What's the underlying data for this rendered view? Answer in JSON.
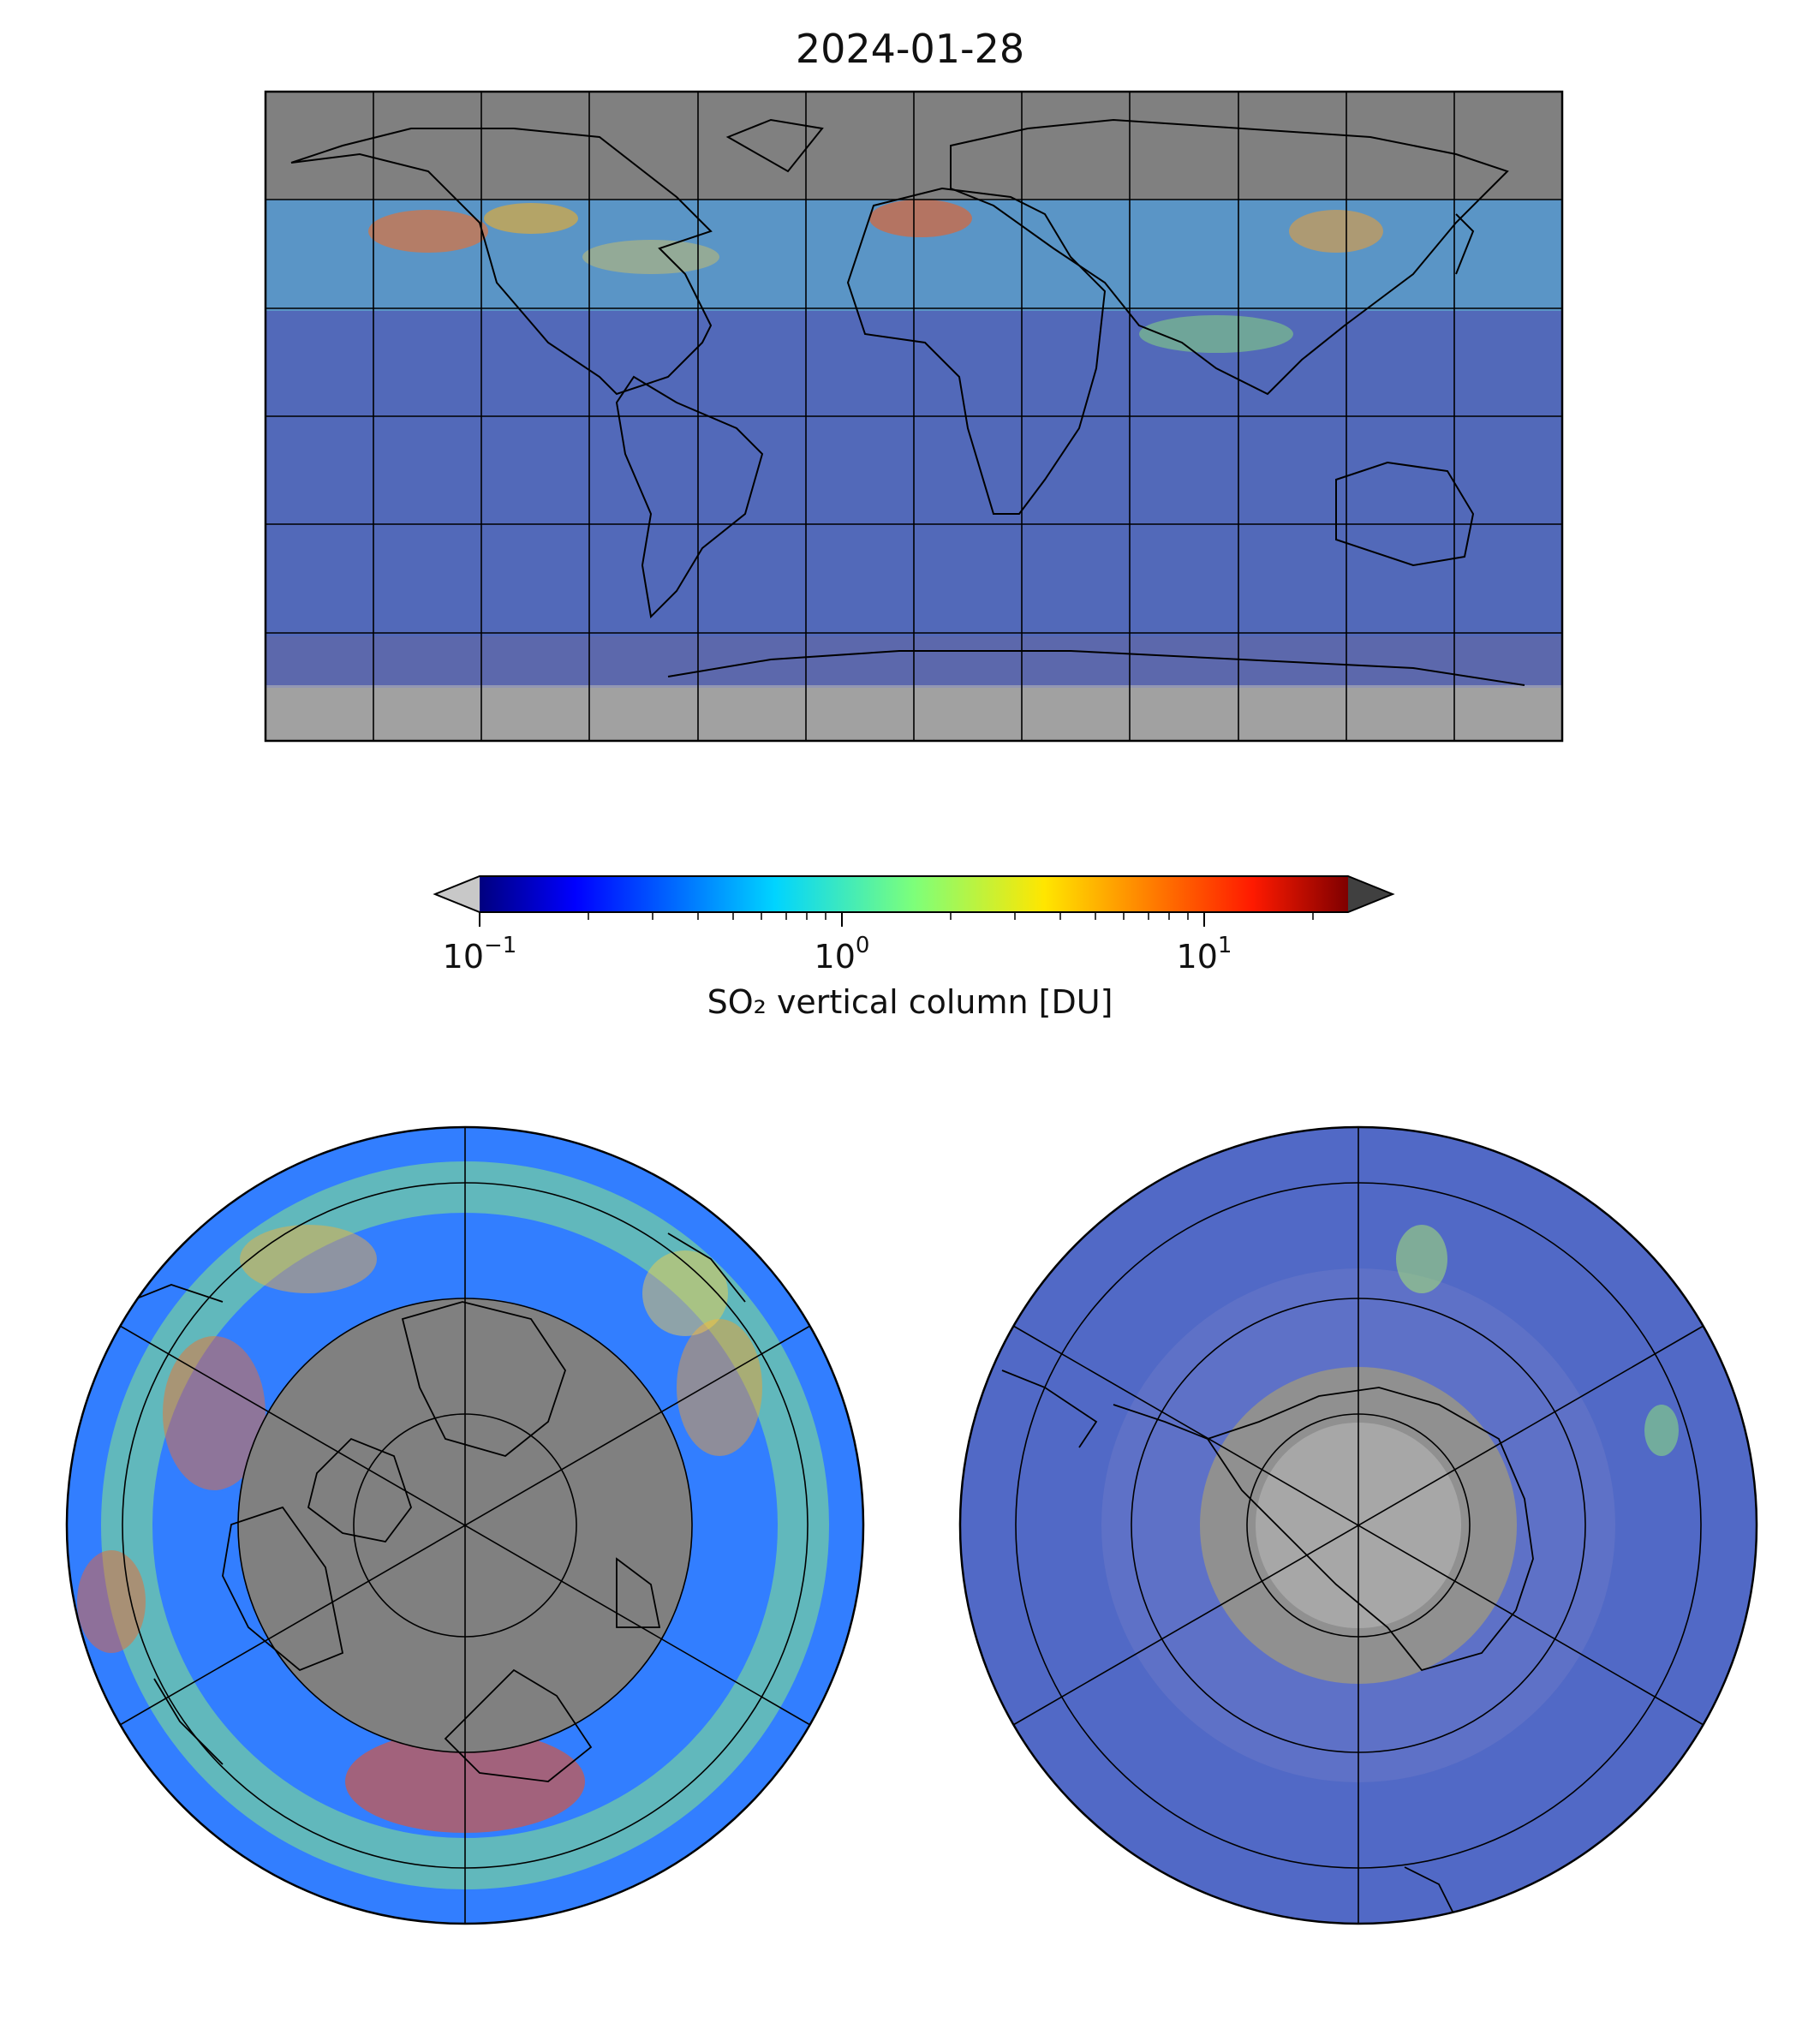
{
  "title": "2024-01-28",
  "colorbar": {
    "label": "SO₂ vertical column [DU]",
    "colormap": "jet",
    "scale": "log",
    "range": [
      0.1,
      25
    ],
    "ticks": [
      {
        "base": "10",
        "exp": "−1"
      },
      {
        "base": "10",
        "exp": "0"
      },
      {
        "base": "10",
        "exp": "1"
      }
    ],
    "under_color": "#c8c8c8",
    "over_color": "#404040",
    "extend": "both"
  },
  "panels": [
    {
      "name": "global-map",
      "projection": "plate-carree",
      "graticule_deg": 30
    },
    {
      "name": "north-polar-map",
      "projection": "north-polar-stereographic",
      "graticule_deg": 30
    },
    {
      "name": "south-polar-map",
      "projection": "south-polar-stereographic",
      "graticule_deg": 30
    }
  ],
  "colors": {
    "no_data": "#808080",
    "below_range": "#c0c0c0",
    "coastline": "#000000",
    "grid": "#000000"
  }
}
